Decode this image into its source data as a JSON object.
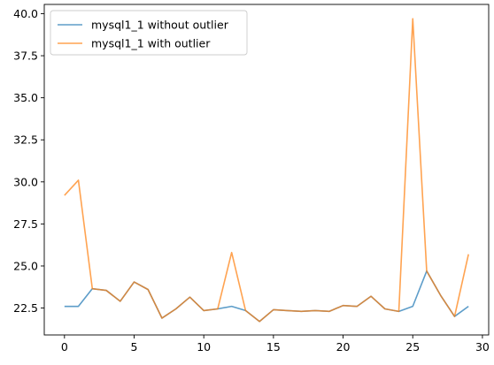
{
  "chart_data": {
    "type": "line",
    "title": "",
    "xlabel": "",
    "ylabel": "",
    "xlim": [
      -1.45,
      30.45
    ],
    "ylim": [
      20.9,
      40.55
    ],
    "xticks": [
      0,
      5,
      10,
      15,
      20,
      25,
      30
    ],
    "yticks": [
      22.5,
      25.0,
      27.5,
      30.0,
      32.5,
      35.0,
      37.5,
      40.0
    ],
    "xtick_labels": [
      "0",
      "5",
      "10",
      "15",
      "20",
      "25",
      "30"
    ],
    "ytick_labels": [
      "22.5",
      "25.0",
      "27.5",
      "30.0",
      "32.5",
      "35.0",
      "37.5",
      "40.0"
    ],
    "grid": false,
    "legend_position": "upper-left",
    "x": [
      0,
      1,
      2,
      3,
      4,
      5,
      6,
      7,
      8,
      9,
      10,
      11,
      12,
      13,
      14,
      15,
      16,
      17,
      18,
      19,
      20,
      21,
      22,
      23,
      24,
      25,
      26,
      27,
      28,
      29
    ],
    "series": [
      {
        "name": "mysql1_1 without outlier",
        "color": "#1f77b4",
        "values": [
          22.6,
          22.6,
          23.65,
          23.55,
          22.9,
          24.05,
          23.6,
          21.9,
          22.45,
          23.15,
          22.35,
          22.45,
          22.6,
          22.35,
          21.7,
          22.4,
          22.35,
          22.3,
          22.35,
          22.3,
          22.65,
          22.6,
          23.2,
          22.45,
          22.3,
          22.6,
          24.7,
          23.25,
          22.0,
          22.6
        ]
      },
      {
        "name": "mysql1_1 with outlier",
        "color": "#ff7f0e",
        "values": [
          29.2,
          30.1,
          23.65,
          23.55,
          22.9,
          24.05,
          23.6,
          21.9,
          22.45,
          23.15,
          22.35,
          22.45,
          25.8,
          22.35,
          21.7,
          22.4,
          22.35,
          22.3,
          22.35,
          22.3,
          22.65,
          22.6,
          23.2,
          22.45,
          22.3,
          39.7,
          24.7,
          23.25,
          22.0,
          25.7
        ]
      }
    ]
  }
}
